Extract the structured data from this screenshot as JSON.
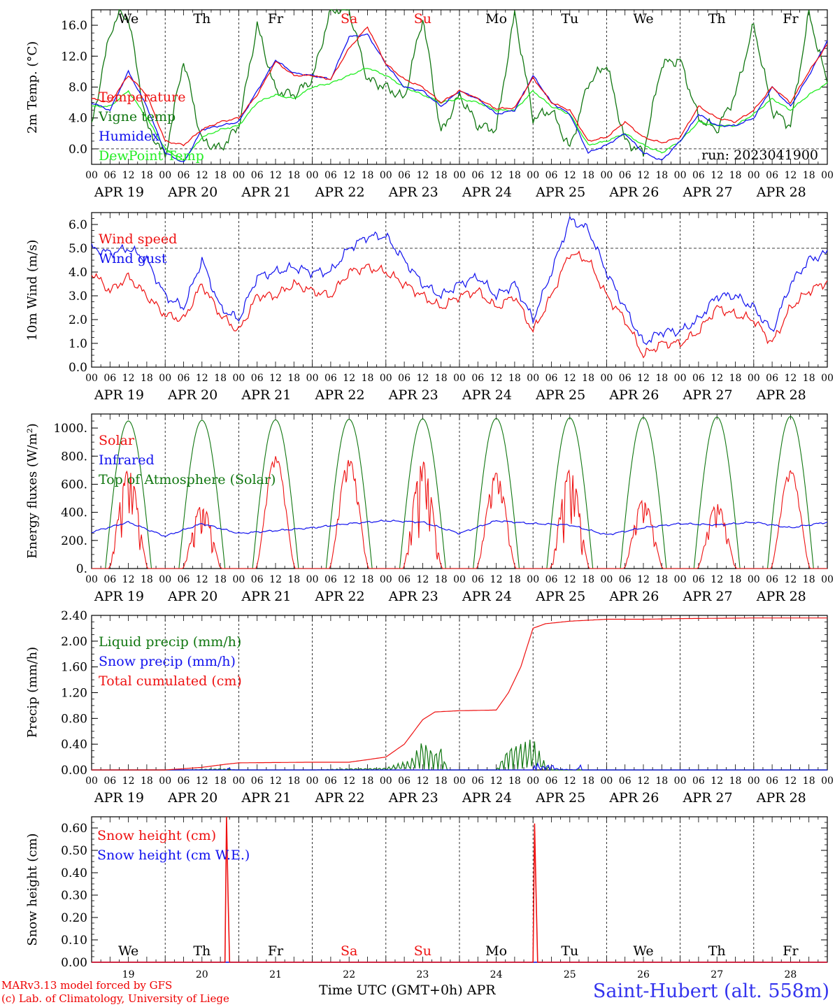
{
  "colors": {
    "red": "#ee1111",
    "green": "#117711",
    "lightgreen": "#22ee22",
    "blue": "#1111ee",
    "axis": "#000000",
    "weekend": "#ee1111"
  },
  "days": {
    "weekday_labels": [
      "We",
      "Th",
      "Fr",
      "Sa",
      "Su",
      "Mo",
      "Tu",
      "We",
      "Th",
      "Fr"
    ],
    "weekend_flags": [
      false,
      false,
      false,
      true,
      true,
      false,
      false,
      false,
      false,
      false
    ],
    "date_labels": [
      "APR 19",
      "APR 20",
      "APR 21",
      "APR 22",
      "APR 23",
      "APR 24",
      "APR 25",
      "APR 26",
      "APR 27",
      "APR 28"
    ],
    "day_numbers": [
      "19",
      "20",
      "21",
      "22",
      "23",
      "24",
      "25",
      "26",
      "27",
      "28"
    ],
    "hour_labels": [
      "00",
      "06",
      "12",
      "18"
    ],
    "final_hour_label": "00"
  },
  "chart_data": [
    {
      "type": "line",
      "ylabel": "2m Temp. (°C)",
      "ylim": [
        -2.0,
        18.0
      ],
      "yticks": [
        "0.0",
        "4.0",
        "8.0",
        "12.0",
        "16.0"
      ],
      "annotation": "run: 2023041900",
      "x_unit": "hours since APR 19 00 UTC",
      "series": [
        {
          "name": "Temperature",
          "color": "red",
          "x": [
            0,
            6,
            12,
            18,
            24,
            30,
            36,
            42,
            48,
            54,
            60,
            66,
            72,
            78,
            84,
            90,
            96,
            102,
            108,
            114,
            120,
            126,
            132,
            138,
            144,
            150,
            156,
            162,
            168,
            174,
            180,
            186,
            192,
            198,
            204,
            210,
            216,
            222,
            228,
            234,
            240
          ],
          "y": [
            6.5,
            6.0,
            9.5,
            7.0,
            1.0,
            0.5,
            2.5,
            3.5,
            4.0,
            7.0,
            11.3,
            9.5,
            9.5,
            9.0,
            13.0,
            15.8,
            11.0,
            9.0,
            8.0,
            6.0,
            7.5,
            6.5,
            5.2,
            5.3,
            9.2,
            6.0,
            5.0,
            1.0,
            1.5,
            3.5,
            1.5,
            0.8,
            1.5,
            5.5,
            4.0,
            3.5,
            5.0,
            8.0,
            6.0,
            10.0,
            13.5
          ]
        },
        {
          "name": "Vigne temp",
          "color": "green",
          "x": [
            0,
            6,
            9,
            12,
            18,
            24,
            30,
            36,
            42,
            48,
            54,
            60,
            66,
            72,
            78,
            84,
            90,
            96,
            102,
            108,
            114,
            120,
            126,
            132,
            138,
            144,
            150,
            156,
            162,
            168,
            174,
            180,
            186,
            192,
            198,
            204,
            210,
            216,
            222,
            228,
            234,
            240
          ],
          "y": [
            3.0,
            15.0,
            17.5,
            17.0,
            3.0,
            -1.0,
            11.5,
            1.0,
            0.0,
            3.0,
            16.0,
            7.5,
            7.0,
            9.0,
            18.0,
            18.0,
            9.0,
            8.0,
            6.5,
            17.0,
            2.0,
            7.0,
            3.0,
            2.5,
            17.5,
            4.0,
            5.0,
            0.0,
            8.5,
            11.0,
            1.0,
            -0.5,
            11.0,
            11.5,
            4.0,
            2.5,
            7.0,
            16.0,
            5.0,
            3.0,
            17.5,
            8.5
          ]
        },
        {
          "name": "Humidex",
          "color": "blue",
          "x": [
            0,
            6,
            12,
            18,
            24,
            30,
            36,
            42,
            48,
            54,
            60,
            66,
            72,
            78,
            84,
            90,
            96,
            102,
            108,
            114,
            120,
            126,
            132,
            138,
            144,
            150,
            156,
            162,
            168,
            174,
            180,
            186,
            192,
            198,
            204,
            210,
            216,
            222,
            228,
            234,
            240
          ],
          "y": [
            6.0,
            5.0,
            10.0,
            5.5,
            -0.5,
            -1.8,
            2.5,
            3.0,
            3.5,
            7.5,
            11.5,
            9.8,
            9.5,
            9.0,
            14.5,
            14.8,
            11.0,
            8.0,
            7.5,
            5.5,
            7.5,
            6.5,
            4.5,
            5.0,
            9.5,
            6.0,
            4.5,
            -0.5,
            0.5,
            2.0,
            -0.5,
            -1.5,
            1.0,
            4.5,
            3.0,
            3.0,
            4.0,
            8.0,
            5.5,
            9.5,
            14.0
          ]
        },
        {
          "name": "DewPoint Temp",
          "color": "lightgreen",
          "x": [
            0,
            6,
            12,
            18,
            24,
            30,
            36,
            42,
            48,
            54,
            60,
            66,
            72,
            78,
            84,
            90,
            96,
            102,
            108,
            114,
            120,
            126,
            132,
            138,
            144,
            150,
            156,
            162,
            168,
            174,
            180,
            186,
            192,
            198,
            204,
            210,
            216,
            222,
            228,
            234,
            240
          ],
          "y": [
            5.5,
            5.5,
            7.5,
            4.0,
            0.0,
            -1.5,
            1.5,
            2.5,
            3.0,
            6.0,
            7.0,
            6.5,
            8.0,
            8.5,
            9.5,
            10.5,
            9.5,
            8.0,
            7.0,
            6.0,
            6.5,
            6.0,
            5.0,
            5.0,
            7.5,
            5.5,
            4.5,
            0.5,
            1.0,
            2.0,
            0.5,
            -0.5,
            1.0,
            3.5,
            3.0,
            3.0,
            4.5,
            6.5,
            5.0,
            7.0,
            8.5
          ]
        }
      ]
    },
    {
      "type": "line",
      "ylabel": "10m Wind (m/s)",
      "ylim": [
        0.0,
        6.5
      ],
      "yticks": [
        "0.0",
        "1.0",
        "2.0",
        "3.0",
        "4.0",
        "5.0",
        "6.0"
      ],
      "x_unit": "hours since APR 19 00 UTC",
      "series": [
        {
          "name": "Wind speed",
          "color": "red",
          "x": [
            0,
            6,
            12,
            18,
            24,
            30,
            36,
            42,
            48,
            54,
            60,
            66,
            72,
            78,
            84,
            90,
            96,
            102,
            108,
            114,
            120,
            126,
            132,
            138,
            144,
            150,
            156,
            162,
            168,
            174,
            180,
            186,
            192,
            198,
            204,
            210,
            216,
            222,
            228,
            234,
            240
          ],
          "y": [
            4.0,
            3.2,
            3.8,
            3.0,
            2.2,
            2.0,
            3.5,
            2.2,
            1.5,
            3.0,
            3.0,
            3.5,
            3.2,
            3.0,
            4.0,
            4.2,
            4.0,
            3.5,
            3.0,
            2.5,
            3.0,
            3.2,
            2.5,
            3.0,
            1.5,
            3.0,
            4.8,
            4.5,
            3.0,
            2.0,
            0.5,
            1.0,
            1.0,
            1.5,
            2.5,
            2.2,
            2.0,
            1.0,
            2.5,
            3.2,
            3.6
          ]
        },
        {
          "name": "Wind gust",
          "color": "blue",
          "x": [
            0,
            6,
            12,
            18,
            24,
            30,
            36,
            42,
            48,
            54,
            60,
            66,
            72,
            78,
            84,
            90,
            96,
            102,
            108,
            114,
            120,
            126,
            132,
            138,
            144,
            150,
            156,
            162,
            168,
            174,
            180,
            186,
            192,
            198,
            204,
            210,
            216,
            222,
            228,
            234,
            240
          ],
          "y": [
            5.0,
            4.8,
            5.0,
            4.5,
            3.0,
            2.5,
            4.5,
            2.5,
            2.0,
            3.8,
            4.0,
            4.2,
            4.0,
            4.0,
            5.0,
            5.5,
            5.5,
            4.5,
            3.5,
            3.0,
            3.5,
            3.8,
            3.0,
            3.5,
            2.0,
            4.0,
            6.2,
            5.8,
            4.0,
            2.5,
            1.0,
            1.5,
            1.5,
            2.0,
            3.0,
            3.0,
            2.5,
            1.5,
            3.5,
            4.5,
            4.8
          ]
        }
      ]
    },
    {
      "type": "line",
      "ylabel": "Energy fluxes (W/m²)",
      "ylim": [
        0,
        1100
      ],
      "yticks": [
        "0.",
        "200.",
        "400.",
        "600.",
        "800.",
        "1000."
      ],
      "x_unit": "hours since APR 19 00 UTC",
      "series": [
        {
          "name": "Solar",
          "color": "red",
          "day_peaks": [
            700,
            450,
            800,
            780,
            760,
            680,
            700,
            490,
            460,
            700
          ],
          "variability": [
            0.6,
            0.6,
            0.1,
            0.2,
            0.7,
            0.3,
            0.7,
            0.4,
            0.4,
            0.1
          ]
        },
        {
          "name": "Infrared",
          "color": "blue",
          "x": [
            0,
            12,
            24,
            36,
            48,
            60,
            72,
            84,
            96,
            108,
            120,
            132,
            144,
            156,
            168,
            180,
            192,
            204,
            216,
            228,
            240
          ],
          "y": [
            260,
            330,
            230,
            320,
            250,
            270,
            290,
            320,
            340,
            330,
            250,
            340,
            320,
            310,
            240,
            290,
            320,
            310,
            330,
            290,
            330
          ]
        },
        {
          "name": "Top of Atmosphere (Solar)",
          "color": "green",
          "day_peaks": [
            1050,
            1055,
            1058,
            1062,
            1065,
            1068,
            1072,
            1075,
            1078,
            1082
          ]
        }
      ]
    },
    {
      "type": "line",
      "ylabel": "Precip (mm/h)",
      "ylim": [
        0.0,
        2.4
      ],
      "yticks": [
        "0.00",
        "0.40",
        "0.80",
        "1.20",
        "1.60",
        "2.00",
        "2.40"
      ],
      "x_unit": "hours since APR 19 00 UTC",
      "series": [
        {
          "name": "Liquid precip (mm/h)",
          "color": "green",
          "x": [
            0,
            30,
            36,
            42,
            48,
            72,
            84,
            96,
            100,
            104,
            108,
            112,
            114,
            116,
            120,
            132,
            136,
            140,
            144,
            148,
            150,
            156,
            240
          ],
          "y": [
            0.0,
            0.0,
            0.01,
            0.02,
            0.0,
            0.0,
            0.02,
            0.03,
            0.1,
            0.15,
            0.5,
            0.3,
            0.4,
            0.0,
            0.0,
            0.0,
            0.4,
            0.45,
            0.5,
            0.1,
            0.0,
            0.0,
            0.0
          ]
        },
        {
          "name": "Snow precip (mm/h)",
          "color": "blue",
          "x": [
            0,
            44,
            45,
            46,
            144,
            145,
            146,
            150,
            152,
            158,
            159,
            160,
            240
          ],
          "y": [
            0.0,
            0.0,
            0.05,
            0.0,
            0.0,
            0.2,
            0.05,
            0.1,
            0.02,
            0.0,
            0.15,
            0.0,
            0.0
          ]
        },
        {
          "name": "Total cumulated (cm)",
          "color": "red",
          "x": [
            0,
            24,
            36,
            44,
            48,
            72,
            84,
            96,
            102,
            108,
            112,
            120,
            132,
            136,
            140,
            142,
            144,
            148,
            156,
            168,
            180,
            192,
            216,
            240
          ],
          "y": [
            0.0,
            0.0,
            0.04,
            0.09,
            0.11,
            0.12,
            0.12,
            0.2,
            0.4,
            0.78,
            0.9,
            0.92,
            0.93,
            1.2,
            1.6,
            1.9,
            2.2,
            2.27,
            2.31,
            2.34,
            2.34,
            2.35,
            2.36,
            2.36
          ]
        }
      ]
    },
    {
      "type": "line",
      "ylabel": "Snow height (cm)",
      "ylim": [
        0.0,
        0.65
      ],
      "yticks": [
        "0.00",
        "0.10",
        "0.20",
        "0.30",
        "0.40",
        "0.50",
        "0.60"
      ],
      "x_unit": "hours since APR 19 00 UTC",
      "series": [
        {
          "name": "Snow height (cm)",
          "color": "red",
          "x": [
            0,
            43.5,
            44.0,
            44.5,
            45.0,
            144,
            144.5,
            145.0,
            145.5,
            240
          ],
          "y": [
            0.0,
            0.0,
            0.65,
            0.3,
            0.0,
            0.0,
            0.62,
            0.3,
            0.0,
            0.0
          ]
        },
        {
          "name": "Snow height (cm W.E.)",
          "color": "blue",
          "x": [
            0,
            240
          ],
          "y": [
            0.0,
            0.0
          ]
        }
      ]
    }
  ],
  "footer": {
    "credit_line1": "MARv3.13 model forced by GFS",
    "credit_line2": "(c) Lab. of Climatology, University of Liege",
    "time_axis_label": "Time UTC (GMT+0h) APR",
    "station": "Saint-Hubert (alt. 558m)"
  }
}
